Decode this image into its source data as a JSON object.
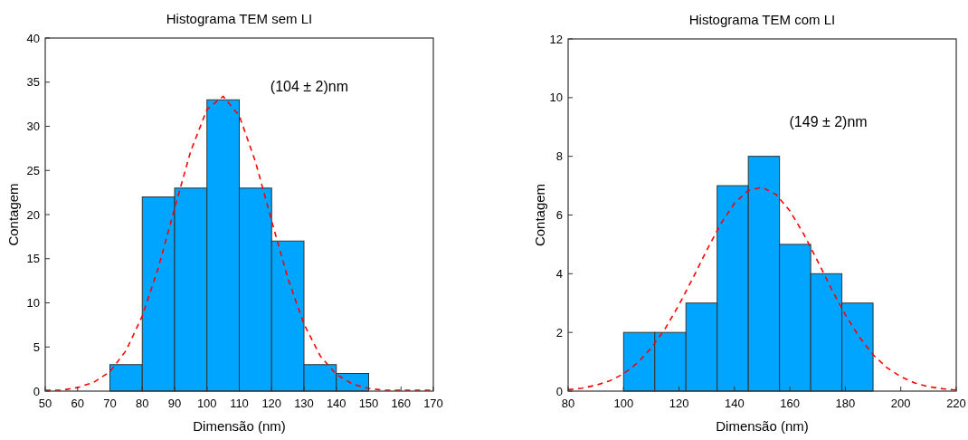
{
  "chart_data": [
    {
      "type": "histogram",
      "title": "Histograma TEM sem LI",
      "xlabel": "Dimensão (nm)",
      "ylabel": "Contagem",
      "xlim": [
        50,
        170
      ],
      "xticks": [
        50,
        60,
        70,
        80,
        90,
        100,
        110,
        120,
        130,
        140,
        150,
        160,
        170
      ],
      "ylim": [
        0,
        40
      ],
      "yticks": [
        0,
        5,
        10,
        15,
        20,
        25,
        30,
        35,
        40
      ],
      "annotations": [
        "(104 ± 2)nm"
      ],
      "series": [
        {
          "type": "histogram",
          "color": "#00a5ff",
          "bins": [
            70,
            80,
            90,
            100,
            110,
            120,
            130,
            140,
            150
          ],
          "values": [
            3,
            22,
            23,
            33,
            23,
            17,
            3,
            2
          ]
        },
        {
          "type": "line",
          "color": "#ff0000",
          "line_style": "dashed",
          "x": [
            50,
            55,
            60,
            65,
            70,
            75,
            80,
            85,
            90,
            95,
            100,
            105,
            110,
            115,
            120,
            125,
            130,
            135,
            140,
            145,
            150,
            155,
            160,
            165,
            170
          ],
          "values": [
            0.1,
            0.1,
            0.4,
            1,
            2.2,
            4.6,
            8.5,
            14,
            20.7,
            27.2,
            31.9,
            33.4,
            31.2,
            26,
            19.3,
            12.8,
            7.6,
            4,
            1.9,
            0.8,
            0.3,
            0.1,
            0.1,
            0.1,
            0.1
          ]
        }
      ]
    },
    {
      "type": "histogram",
      "title": "Histograma TEM com LI",
      "xlabel": "Dimensão (nm)",
      "ylabel": "Contagem",
      "xlim": [
        80,
        220
      ],
      "xticks": [
        80,
        100,
        120,
        140,
        160,
        180,
        200,
        220
      ],
      "ylim": [
        0,
        12
      ],
      "yticks": [
        0,
        2,
        4,
        6,
        8,
        10,
        12
      ],
      "annotations": [
        "(149 ± 2)nm"
      ],
      "series": [
        {
          "type": "histogram",
          "color": "#00a5ff",
          "bins": [
            100,
            111.25,
            122.5,
            133.75,
            145,
            156.25,
            167.5,
            178.75,
            190
          ],
          "values": [
            2,
            2,
            3,
            7,
            8,
            5,
            4,
            3
          ]
        },
        {
          "type": "line",
          "color": "#ff0000",
          "line_style": "dashed",
          "x": [
            80,
            85,
            90,
            95,
            100,
            105,
            110,
            115,
            120,
            125,
            130,
            135,
            140,
            145,
            150,
            155,
            160,
            165,
            170,
            175,
            180,
            185,
            190,
            195,
            200,
            205,
            210,
            215,
            220
          ],
          "values": [
            0.05,
            0.1,
            0.2,
            0.35,
            0.59,
            0.96,
            1.47,
            2.13,
            2.94,
            3.85,
            4.8,
            5.69,
            6.4,
            6.84,
            6.94,
            6.7,
            6.14,
            5.35,
            4.43,
            3.48,
            2.6,
            1.85,
            1.24,
            0.8,
            0.49,
            0.28,
            0.15,
            0.08,
            0.04
          ]
        }
      ]
    }
  ]
}
